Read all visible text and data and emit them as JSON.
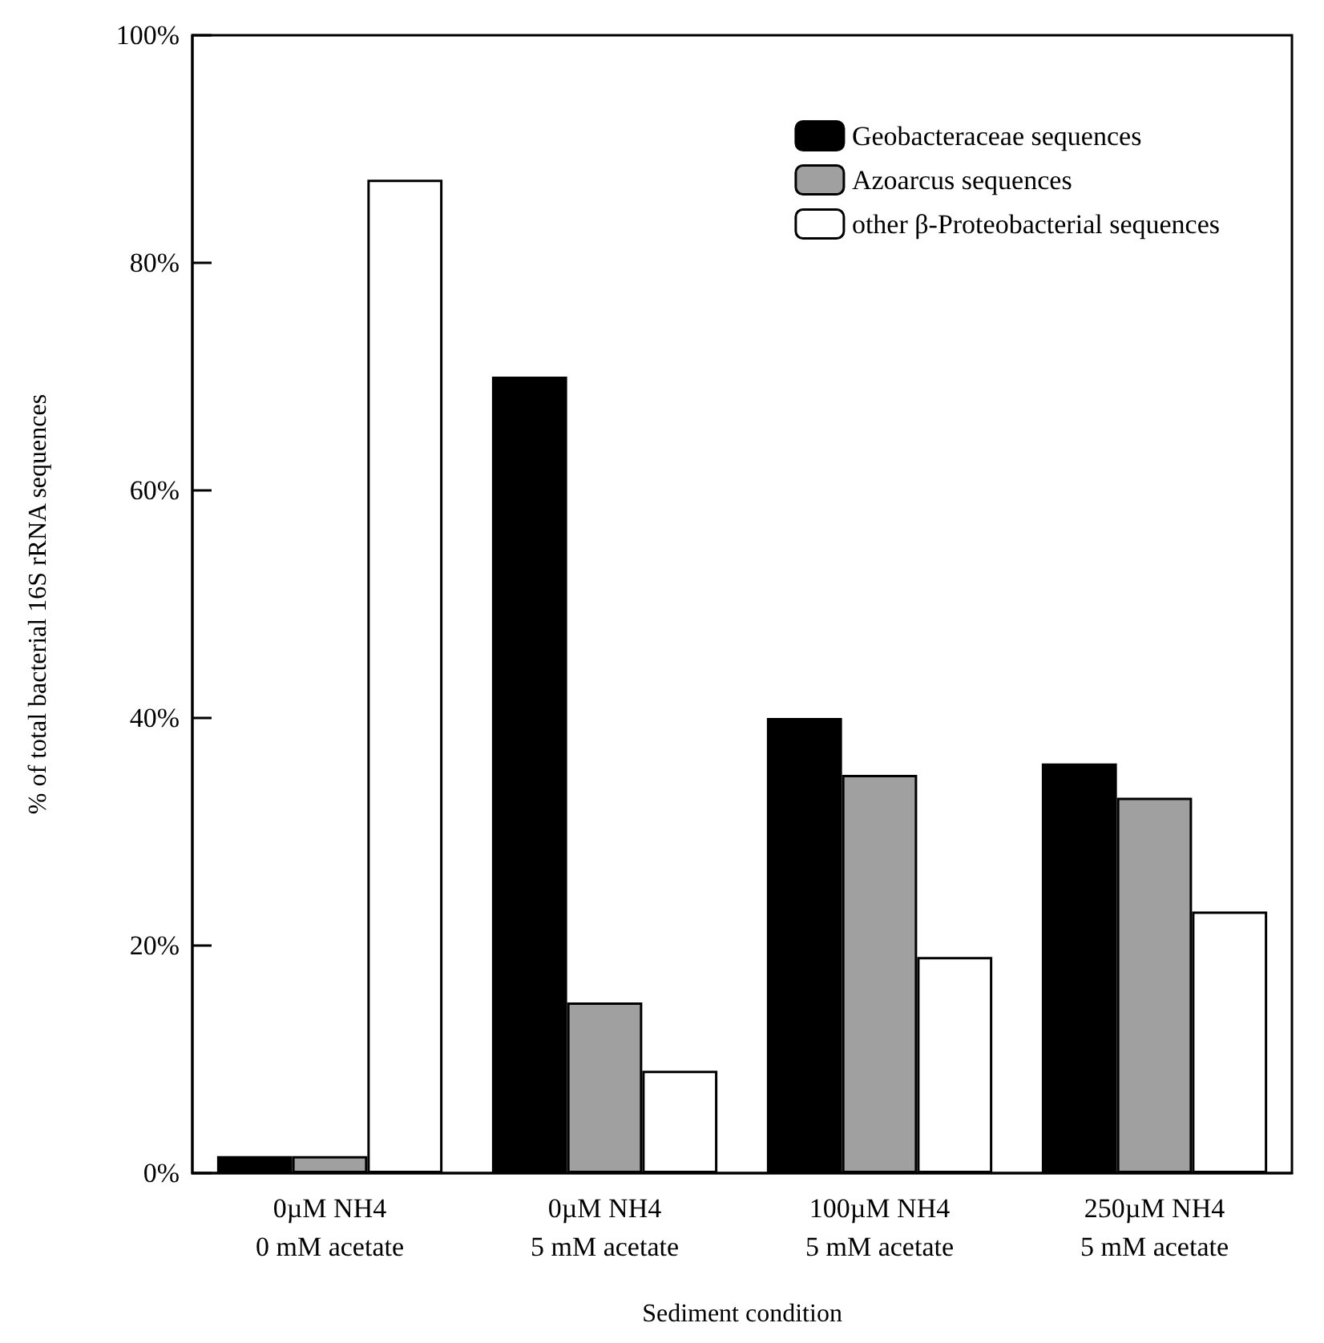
{
  "chart_data": {
    "type": "bar",
    "xlabel": "Sediment condition",
    "ylabel": "% of total bacterial 16S rRNA sequences",
    "categories": [
      "0µM NH4\n0 mM acetate",
      "0µM NH4\n5 mM acetate",
      "100µM NH4\n5 mM acetate",
      "250µM NH4\n5 mM acetate"
    ],
    "series": [
      {
        "name": "Geobacteraceae sequences",
        "color": "#000000",
        "values": [
          1.5,
          70,
          40,
          36
        ]
      },
      {
        "name": "Azoarcus sequences",
        "color": "#a0a0a0",
        "values": [
          1.5,
          15,
          35,
          33
        ]
      },
      {
        "name": "other β-Proteobacterial sequences",
        "color": "#ffffff",
        "values": [
          87.3,
          9,
          19,
          23
        ]
      }
    ],
    "ylim": [
      0,
      100
    ],
    "yticks": [
      {
        "value": 0,
        "label": "0%"
      },
      {
        "value": 20,
        "label": "20%"
      },
      {
        "value": 40,
        "label": "40%"
      },
      {
        "value": 60,
        "label": "60%"
      },
      {
        "value": 80,
        "label": "80%"
      },
      {
        "value": 100,
        "label": "100%"
      }
    ],
    "grid": false,
    "legend": "top right"
  }
}
